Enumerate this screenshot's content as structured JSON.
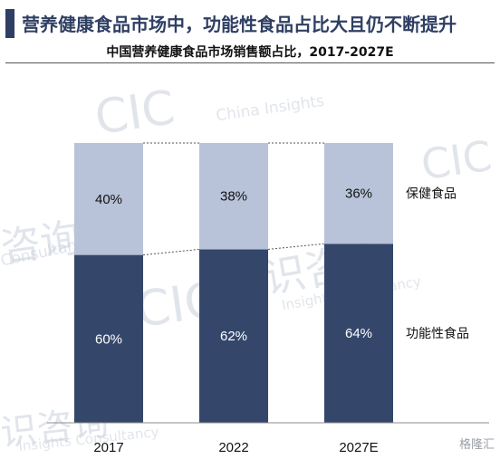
{
  "headline": "营养健康食品市场中，功能性食品占比大且仍不断提升",
  "watermarks": [
    "CIC",
    "China Insights",
    "咨询",
    "Consultancy",
    "识咨询",
    "Insights Consultancy"
  ],
  "logo_text": "格隆汇",
  "chart_data": {
    "type": "bar",
    "stacked": true,
    "title": "中国营养健康食品市场销售额占比，2017-2027E",
    "categories": [
      "2017",
      "2022",
      "2027E"
    ],
    "series": [
      {
        "name": "功能性食品",
        "values": [
          60,
          62,
          64
        ],
        "labels": [
          "60%",
          "62%",
          "64%"
        ],
        "color": "#34476b"
      },
      {
        "name": "保健食品",
        "values": [
          40,
          38,
          36
        ],
        "labels": [
          "40%",
          "38%",
          "36%"
        ],
        "color": "#b8c3da"
      }
    ],
    "ylim": [
      0,
      100
    ],
    "grid": false,
    "legend": "right"
  }
}
